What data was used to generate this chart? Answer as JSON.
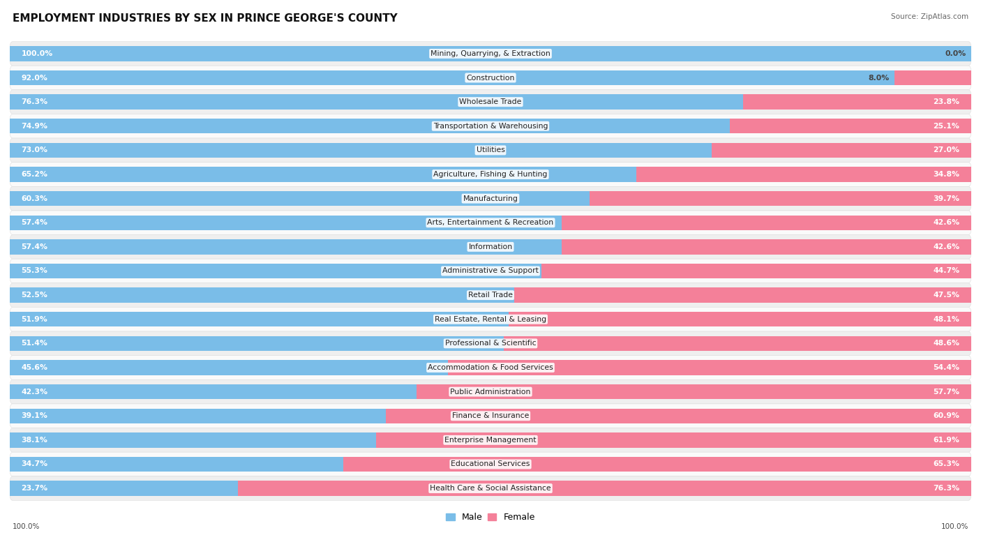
{
  "title": "EMPLOYMENT INDUSTRIES BY SEX IN PRINCE GEORGE'S COUNTY",
  "source": "Source: ZipAtlas.com",
  "industries": [
    {
      "name": "Mining, Quarrying, & Extraction",
      "male": 100.0,
      "female": 0.0
    },
    {
      "name": "Construction",
      "male": 92.0,
      "female": 8.0
    },
    {
      "name": "Wholesale Trade",
      "male": 76.3,
      "female": 23.8
    },
    {
      "name": "Transportation & Warehousing",
      "male": 74.9,
      "female": 25.1
    },
    {
      "name": "Utilities",
      "male": 73.0,
      "female": 27.0
    },
    {
      "name": "Agriculture, Fishing & Hunting",
      "male": 65.2,
      "female": 34.8
    },
    {
      "name": "Manufacturing",
      "male": 60.3,
      "female": 39.7
    },
    {
      "name": "Arts, Entertainment & Recreation",
      "male": 57.4,
      "female": 42.6
    },
    {
      "name": "Information",
      "male": 57.4,
      "female": 42.6
    },
    {
      "name": "Administrative & Support",
      "male": 55.3,
      "female": 44.7
    },
    {
      "name": "Retail Trade",
      "male": 52.5,
      "female": 47.5
    },
    {
      "name": "Real Estate, Rental & Leasing",
      "male": 51.9,
      "female": 48.1
    },
    {
      "name": "Professional & Scientific",
      "male": 51.4,
      "female": 48.6
    },
    {
      "name": "Accommodation & Food Services",
      "male": 45.6,
      "female": 54.4
    },
    {
      "name": "Public Administration",
      "male": 42.3,
      "female": 57.7
    },
    {
      "name": "Finance & Insurance",
      "male": 39.1,
      "female": 60.9
    },
    {
      "name": "Enterprise Management",
      "male": 38.1,
      "female": 61.9
    },
    {
      "name": "Educational Services",
      "male": 34.7,
      "female": 65.3
    },
    {
      "name": "Health Care & Social Assistance",
      "male": 23.7,
      "female": 76.3
    }
  ],
  "male_color": "#7ABDE8",
  "female_color": "#F48099",
  "male_label": "Male",
  "female_label": "Female",
  "bg_color": "#FFFFFF",
  "bar_height": 0.62,
  "title_fontsize": 11,
  "label_fontsize": 7.8,
  "name_fontsize": 7.8,
  "row_colors": [
    "#EFEFEF",
    "#FAFAFA"
  ]
}
